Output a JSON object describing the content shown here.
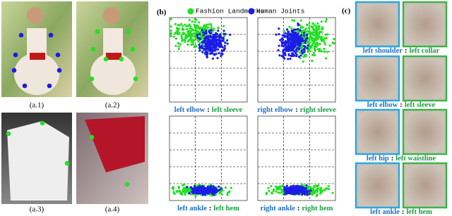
{
  "panel_a": {
    "captions": [
      "(a.1)",
      "(a.2)",
      "(a.3)",
      "(a.4)"
    ]
  },
  "panel_b": {
    "label": "(b)",
    "separator": ":",
    "legend": [
      {
        "name": "Fashion Landmarks",
        "color": "#22e022"
      },
      {
        "name": "Human Joints",
        "color": "#1c1ce8"
      }
    ],
    "plots": [
      {
        "joint": "left elbow",
        "landmark": "left sleeve"
      },
      {
        "joint": "right elbow",
        "landmark": "right sleeve"
      },
      {
        "joint": "left ankle",
        "landmark": "left hem"
      },
      {
        "joint": "right ankle",
        "landmark": "right hem"
      }
    ]
  },
  "panel_c": {
    "label": "(c)",
    "separator": ":",
    "pairs": [
      {
        "joint": "left shoulder",
        "landmark": "left collar"
      },
      {
        "joint": "left elbow",
        "landmark": "left sleeve"
      },
      {
        "joint": "left hip",
        "landmark": "left waistline"
      },
      {
        "joint": "left ankle",
        "landmark": "left hem"
      }
    ]
  }
}
